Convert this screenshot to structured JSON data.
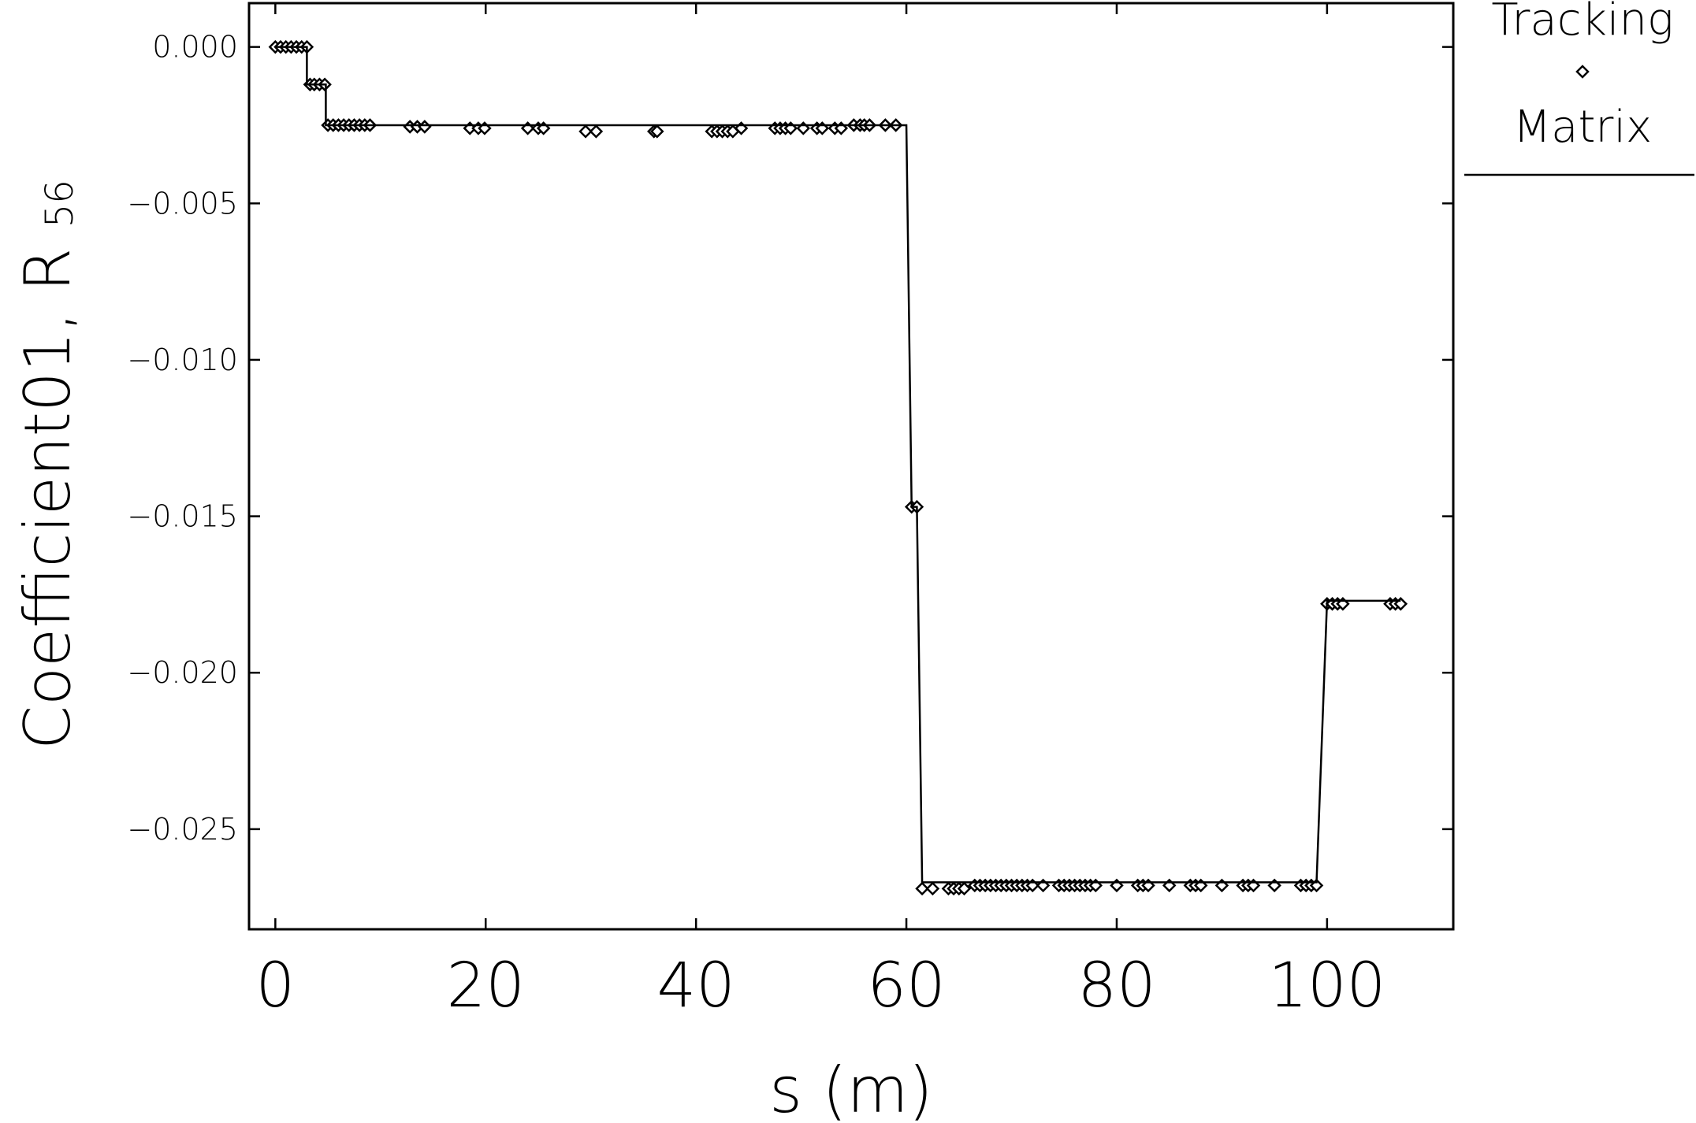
{
  "chart_data": {
    "type": "line",
    "xlabel": "s  (m)",
    "ylabel": "Coefficient01,  R",
    "ylabel_subscript": "56",
    "xlim": [
      -2.5,
      112
    ],
    "ylim": [
      -0.0282,
      0.0014
    ],
    "x_ticks": [
      0,
      20,
      40,
      60,
      80,
      100
    ],
    "x_tick_labels": [
      "0",
      "20",
      "40",
      "60",
      "80",
      "100"
    ],
    "y_ticks": [
      0.0,
      -0.005,
      -0.01,
      -0.015,
      -0.02,
      -0.025
    ],
    "y_tick_labels": [
      "0.000",
      "−0.005",
      "−0.010",
      "−0.015",
      "−0.020",
      "−0.025"
    ],
    "grid": false,
    "legend": {
      "placement": "right-outside-top",
      "entries": [
        {
          "label": "Tracking",
          "marker": "diamond"
        },
        {
          "label": "Matrix",
          "marker": "line"
        }
      ]
    },
    "series": [
      {
        "name": "Tracking",
        "marker": "diamond-open",
        "x": [
          0.0,
          0.5,
          1.0,
          1.5,
          2.0,
          2.5,
          3.0,
          3.3,
          3.7,
          4.2,
          4.7,
          5.0,
          5.5,
          6.0,
          6.5,
          7.0,
          7.5,
          8.0,
          8.5,
          9.0,
          12.8,
          13.5,
          14.2,
          18.5,
          19.3,
          19.9,
          24.0,
          25.0,
          25.5,
          29.5,
          30.5,
          36.0,
          36.3,
          41.5,
          42.0,
          42.5,
          43.0,
          43.5,
          44.3,
          47.5,
          48.0,
          48.5,
          49.0,
          50.2,
          51.5,
          52.0,
          53.2,
          53.8,
          55.0,
          55.6,
          56.0,
          56.5,
          58.0,
          59.0,
          60.5,
          61.0,
          61.5,
          62.5,
          64.0,
          64.5,
          65.0,
          65.5,
          66.5,
          67.0,
          67.5,
          68.0,
          68.5,
          69.0,
          69.5,
          70.0,
          70.5,
          71.0,
          71.5,
          72.0,
          73.0,
          74.5,
          75.0,
          75.5,
          76.0,
          76.5,
          77.0,
          77.5,
          78.0,
          80.0,
          82.0,
          82.5,
          83.0,
          85.0,
          87.0,
          87.5,
          88.0,
          90.0,
          92.0,
          92.5,
          93.0,
          95.0,
          97.5,
          98.0,
          98.5,
          99.0,
          100.0,
          100.5,
          101.0,
          101.5,
          106.0,
          106.5,
          107.0
        ],
        "y": [
          0.0,
          0.0,
          0.0,
          0.0,
          0.0,
          0.0,
          0.0,
          -0.0012,
          -0.0012,
          -0.0012,
          -0.0012,
          -0.0025,
          -0.0025,
          -0.0025,
          -0.0025,
          -0.0025,
          -0.0025,
          -0.0025,
          -0.0025,
          -0.0025,
          -0.00255,
          -0.00255,
          -0.00255,
          -0.0026,
          -0.0026,
          -0.0026,
          -0.0026,
          -0.0026,
          -0.0026,
          -0.0027,
          -0.0027,
          -0.0027,
          -0.0027,
          -0.0027,
          -0.0027,
          -0.0027,
          -0.0027,
          -0.0027,
          -0.0026,
          -0.0026,
          -0.0026,
          -0.0026,
          -0.0026,
          -0.0026,
          -0.0026,
          -0.0026,
          -0.0026,
          -0.0026,
          -0.0025,
          -0.0025,
          -0.0025,
          -0.0025,
          -0.0025,
          -0.0025,
          -0.0147,
          -0.0147,
          -0.0269,
          -0.0269,
          -0.0269,
          -0.0269,
          -0.0269,
          -0.0269,
          -0.0268,
          -0.0268,
          -0.0268,
          -0.0268,
          -0.0268,
          -0.0268,
          -0.0268,
          -0.0268,
          -0.0268,
          -0.0268,
          -0.0268,
          -0.0268,
          -0.0268,
          -0.0268,
          -0.0268,
          -0.0268,
          -0.0268,
          -0.0268,
          -0.0268,
          -0.0268,
          -0.0268,
          -0.0268,
          -0.0268,
          -0.0268,
          -0.0268,
          -0.0268,
          -0.0268,
          -0.0268,
          -0.0268,
          -0.0268,
          -0.0268,
          -0.0268,
          -0.0268,
          -0.0268,
          -0.0268,
          -0.0268,
          -0.0268,
          -0.0268,
          -0.0178,
          -0.0178,
          -0.0178,
          -0.0178,
          -0.0178,
          -0.0178,
          -0.0178
        ]
      },
      {
        "name": "Matrix",
        "marker": "none",
        "x": [
          0.0,
          3.0,
          3.0,
          4.8,
          4.8,
          60.0,
          60.5,
          61.0,
          61.5,
          99.0,
          100.0,
          107.0
        ],
        "y": [
          0.0,
          0.0,
          -0.0012,
          -0.0012,
          -0.0025,
          -0.0025,
          -0.0147,
          -0.0147,
          -0.0267,
          -0.0267,
          -0.0177,
          -0.0177
        ]
      }
    ]
  }
}
